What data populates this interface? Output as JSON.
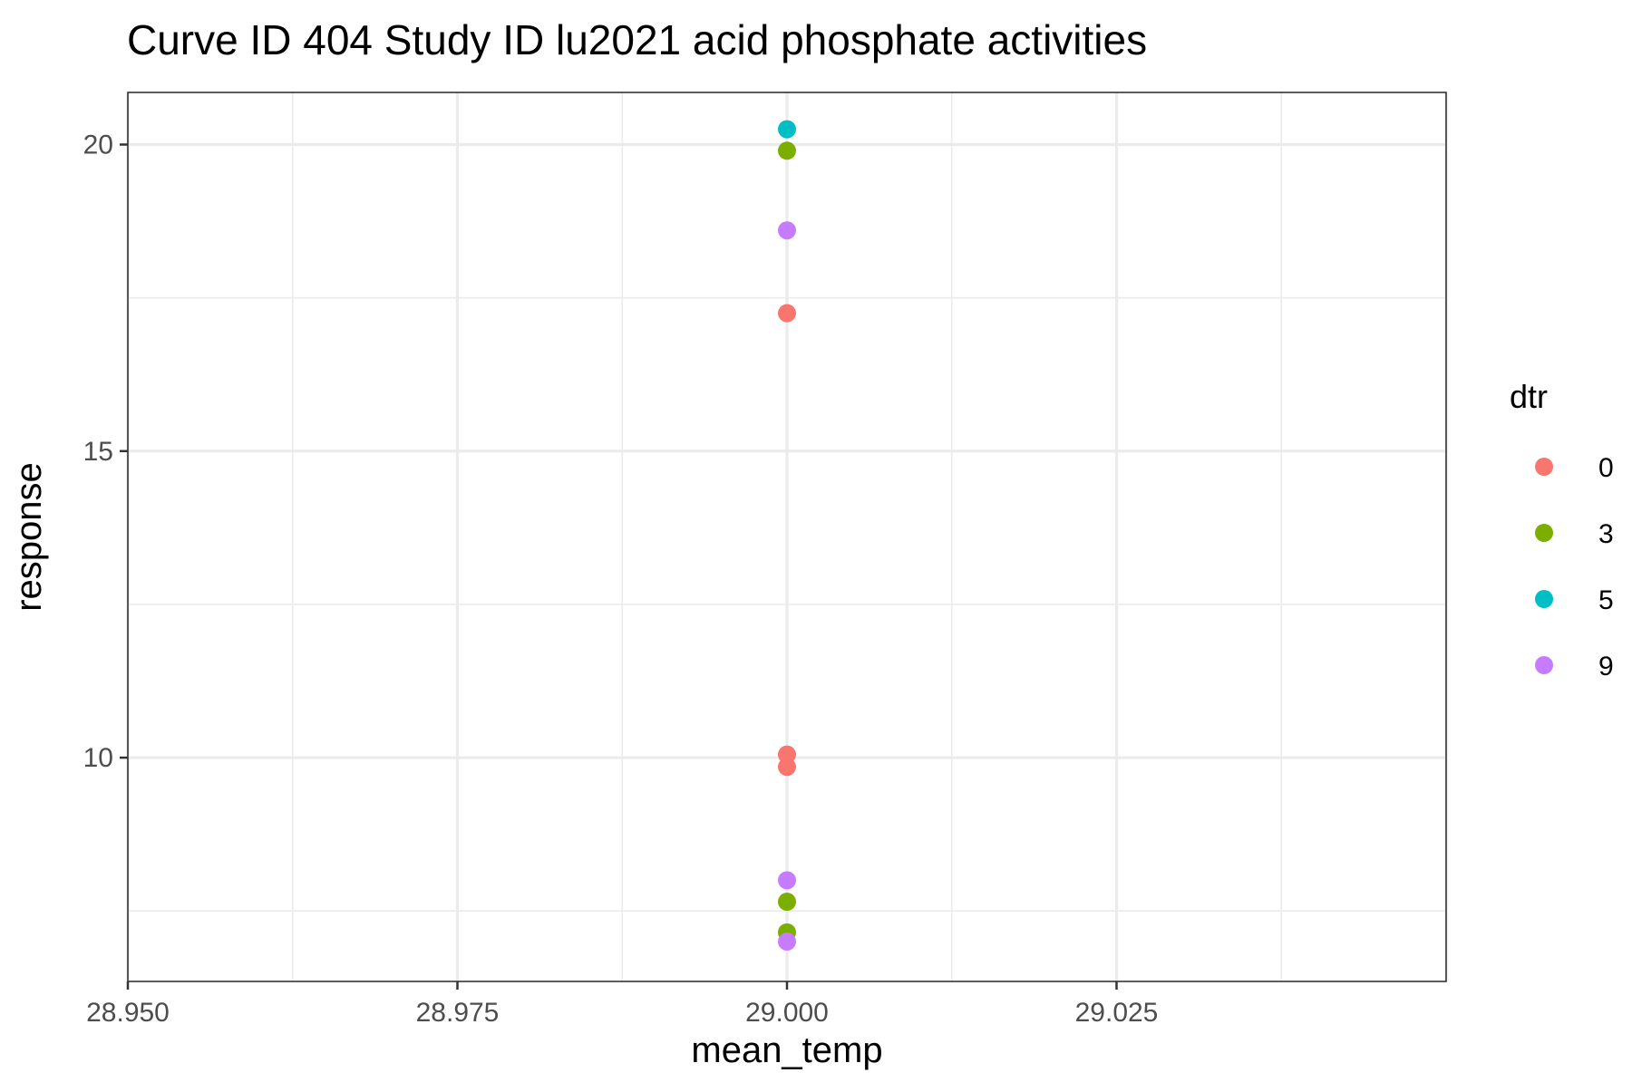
{
  "chart_data": {
    "type": "scatter",
    "title": "Curve ID 404 Study ID lu2021 acid phosphate activities",
    "xlabel": "mean_temp",
    "ylabel": "response",
    "xlim": [
      28.95,
      29.05
    ],
    "ylim": [
      6.35,
      20.85
    ],
    "x_ticks": [
      28.95,
      28.975,
      29.0,
      29.025
    ],
    "x_tick_labels": [
      "28.950",
      "28.975",
      "29.000",
      "29.025"
    ],
    "y_ticks": [
      10,
      15,
      20
    ],
    "y_tick_labels": [
      "10",
      "15",
      "20"
    ],
    "grid": true,
    "legend": {
      "title": "dtr",
      "placement": "right"
    },
    "series": [
      {
        "name": "0",
        "color": "#F8766D",
        "points": [
          {
            "x": 29.0,
            "y": 17.25
          },
          {
            "x": 29.0,
            "y": 10.05
          },
          {
            "x": 29.0,
            "y": 9.85
          }
        ]
      },
      {
        "name": "3",
        "color": "#7CAE00",
        "points": [
          {
            "x": 29.0,
            "y": 19.9
          },
          {
            "x": 29.0,
            "y": 7.65
          },
          {
            "x": 29.0,
            "y": 7.15
          }
        ]
      },
      {
        "name": "5",
        "color": "#00BFC4",
        "points": [
          {
            "x": 29.0,
            "y": 20.25
          }
        ]
      },
      {
        "name": "9",
        "color": "#C77CFF",
        "points": [
          {
            "x": 29.0,
            "y": 18.6
          },
          {
            "x": 29.0,
            "y": 8.0
          },
          {
            "x": 29.0,
            "y": 7.0
          }
        ]
      }
    ]
  }
}
